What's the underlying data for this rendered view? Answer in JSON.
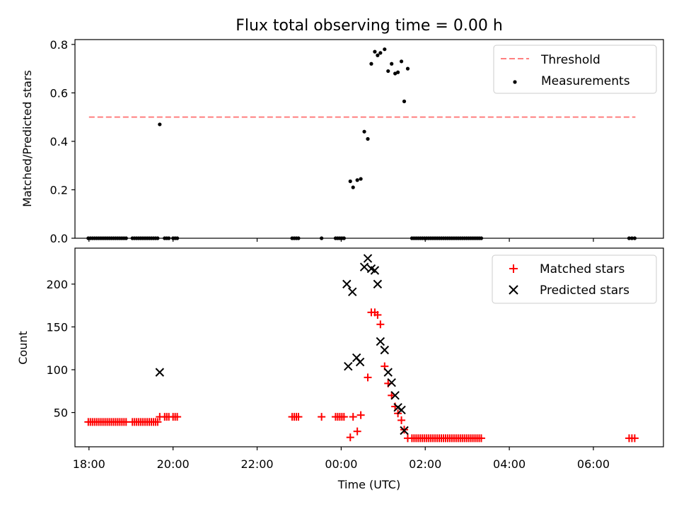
{
  "chart_data": [
    {
      "type": "scatter",
      "title": "Flux total observing time = 0.00 h",
      "xlabel": "",
      "ylabel": "Matched/Predicted stars",
      "xlim": [
        "17:40",
        "07:40"
      ],
      "ylim": [
        0,
        0.82
      ],
      "yticks": [
        0.0,
        0.2,
        0.4,
        0.6,
        0.8
      ],
      "ytick_labels": [
        "0.0",
        "0.2",
        "0.4",
        "0.6",
        "0.8"
      ],
      "grid": false,
      "legend": "upper right",
      "threshold": {
        "name": "Threshold",
        "value": 0.5,
        "x_range": [
          "18:00",
          "07:00"
        ],
        "color": "#ff7f7f",
        "style": "dashed"
      },
      "series": [
        {
          "name": "Measurements",
          "color": "#000000",
          "marker": "dot",
          "points": [
            [
              "17:59",
              0
            ],
            [
              "18:02",
              0
            ],
            [
              "18:05",
              0
            ],
            [
              "18:08",
              0
            ],
            [
              "18:11",
              0
            ],
            [
              "18:14",
              0
            ],
            [
              "18:17",
              0
            ],
            [
              "18:20",
              0
            ],
            [
              "18:23",
              0
            ],
            [
              "18:26",
              0
            ],
            [
              "18:29",
              0
            ],
            [
              "18:32",
              0
            ],
            [
              "18:35",
              0
            ],
            [
              "18:38",
              0
            ],
            [
              "18:41",
              0
            ],
            [
              "18:44",
              0
            ],
            [
              "18:47",
              0
            ],
            [
              "18:50",
              0
            ],
            [
              "18:53",
              0
            ],
            [
              "19:02",
              0
            ],
            [
              "19:05",
              0
            ],
            [
              "19:08",
              0
            ],
            [
              "19:11",
              0
            ],
            [
              "19:14",
              0
            ],
            [
              "19:17",
              0
            ],
            [
              "19:20",
              0
            ],
            [
              "19:23",
              0
            ],
            [
              "19:26",
              0
            ],
            [
              "19:29",
              0
            ],
            [
              "19:32",
              0
            ],
            [
              "19:35",
              0
            ],
            [
              "19:38",
              0
            ],
            [
              "19:41",
              0.47
            ],
            [
              "19:48",
              0
            ],
            [
              "19:51",
              0
            ],
            [
              "19:54",
              0
            ],
            [
              "20:00",
              0
            ],
            [
              "20:03",
              0
            ],
            [
              "20:06",
              0
            ],
            [
              "22:50",
              0
            ],
            [
              "22:53",
              0
            ],
            [
              "22:56",
              0
            ],
            [
              "22:59",
              0
            ],
            [
              "23:32",
              0
            ],
            [
              "23:52",
              0
            ],
            [
              "23:55",
              0
            ],
            [
              "23:58",
              0
            ],
            [
              "00:01",
              0
            ],
            [
              "00:04",
              0
            ],
            [
              "00:13",
              0.235
            ],
            [
              "00:17",
              0.21
            ],
            [
              "00:23",
              0.24
            ],
            [
              "00:28",
              0.245
            ],
            [
              "00:33",
              0.44
            ],
            [
              "00:38",
              0.41
            ],
            [
              "00:43",
              0.72
            ],
            [
              "00:48",
              0.77
            ],
            [
              "00:52",
              0.755
            ],
            [
              "00:56",
              0.765
            ],
            [
              "01:02",
              0.78
            ],
            [
              "01:07",
              0.69
            ],
            [
              "01:12",
              0.72
            ],
            [
              "01:17",
              0.68
            ],
            [
              "01:21",
              0.685
            ],
            [
              "01:26",
              0.73
            ],
            [
              "01:30",
              0.565
            ],
            [
              "01:35",
              0.7
            ],
            [
              "01:41",
              0
            ],
            [
              "01:44",
              0
            ],
            [
              "01:47",
              0
            ],
            [
              "01:50",
              0
            ],
            [
              "01:53",
              0
            ],
            [
              "01:56",
              0
            ],
            [
              "01:59",
              0
            ],
            [
              "02:02",
              0
            ],
            [
              "02:05",
              0
            ],
            [
              "02:08",
              0
            ],
            [
              "02:11",
              0
            ],
            [
              "02:14",
              0
            ],
            [
              "02:17",
              0
            ],
            [
              "02:20",
              0
            ],
            [
              "02:23",
              0
            ],
            [
              "02:26",
              0
            ],
            [
              "02:29",
              0
            ],
            [
              "02:32",
              0
            ],
            [
              "02:35",
              0
            ],
            [
              "02:38",
              0
            ],
            [
              "02:41",
              0
            ],
            [
              "02:44",
              0
            ],
            [
              "02:47",
              0
            ],
            [
              "02:50",
              0
            ],
            [
              "02:53",
              0
            ],
            [
              "02:56",
              0
            ],
            [
              "02:59",
              0
            ],
            [
              "03:02",
              0
            ],
            [
              "03:05",
              0
            ],
            [
              "03:08",
              0
            ],
            [
              "03:11",
              0
            ],
            [
              "03:14",
              0
            ],
            [
              "03:17",
              0
            ],
            [
              "03:20",
              0
            ],
            [
              "06:51",
              0
            ],
            [
              "06:55",
              0
            ],
            [
              "06:59",
              0
            ]
          ]
        }
      ]
    },
    {
      "type": "scatter",
      "title": "",
      "xlabel": "Time (UTC)",
      "ylabel": "Count",
      "xlim": [
        "17:40",
        "07:40"
      ],
      "xticks": [
        "18:00",
        "20:00",
        "22:00",
        "00:00",
        "02:00",
        "04:00",
        "06:00"
      ],
      "ylim": [
        10,
        242
      ],
      "yticks": [
        50,
        100,
        150,
        200
      ],
      "ytick_labels": [
        "50",
        "100",
        "150",
        "200"
      ],
      "grid": false,
      "legend": "upper right",
      "series": [
        {
          "name": "Matched stars",
          "color": "#ff0000",
          "marker": "plus",
          "points": [
            [
              "17:59",
              39
            ],
            [
              "18:02",
              39
            ],
            [
              "18:05",
              39
            ],
            [
              "18:08",
              39
            ],
            [
              "18:11",
              39
            ],
            [
              "18:14",
              39
            ],
            [
              "18:17",
              39
            ],
            [
              "18:20",
              39
            ],
            [
              "18:23",
              39
            ],
            [
              "18:26",
              39
            ],
            [
              "18:29",
              39
            ],
            [
              "18:32",
              39
            ],
            [
              "18:35",
              39
            ],
            [
              "18:38",
              39
            ],
            [
              "18:41",
              39
            ],
            [
              "18:44",
              39
            ],
            [
              "18:47",
              39
            ],
            [
              "18:50",
              39
            ],
            [
              "18:53",
              39
            ],
            [
              "19:02",
              39
            ],
            [
              "19:05",
              39
            ],
            [
              "19:08",
              39
            ],
            [
              "19:11",
              39
            ],
            [
              "19:14",
              39
            ],
            [
              "19:17",
              39
            ],
            [
              "19:20",
              39
            ],
            [
              "19:23",
              39
            ],
            [
              "19:26",
              39
            ],
            [
              "19:29",
              39
            ],
            [
              "19:32",
              39
            ],
            [
              "19:35",
              39
            ],
            [
              "19:38",
              39
            ],
            [
              "19:41",
              45
            ],
            [
              "19:48",
              45
            ],
            [
              "19:51",
              45
            ],
            [
              "19:54",
              45
            ],
            [
              "20:00",
              45
            ],
            [
              "20:03",
              45
            ],
            [
              "20:06",
              45
            ],
            [
              "22:50",
              45
            ],
            [
              "22:53",
              45
            ],
            [
              "22:56",
              45
            ],
            [
              "22:59",
              45
            ],
            [
              "23:32",
              45
            ],
            [
              "23:52",
              45
            ],
            [
              "23:55",
              45
            ],
            [
              "23:58",
              45
            ],
            [
              "00:01",
              45
            ],
            [
              "00:04",
              45
            ],
            [
              "00:13",
              21
            ],
            [
              "00:17",
              45
            ],
            [
              "00:23",
              28
            ],
            [
              "00:28",
              47
            ],
            [
              "00:38",
              91
            ],
            [
              "00:43",
              167
            ],
            [
              "00:48",
              167
            ],
            [
              "00:52",
              164
            ],
            [
              "00:56",
              153
            ],
            [
              "01:02",
              104
            ],
            [
              "01:07",
              84
            ],
            [
              "01:12",
              70
            ],
            [
              "01:17",
              57
            ],
            [
              "01:21",
              49
            ],
            [
              "01:26",
              41
            ],
            [
              "01:30",
              30
            ],
            [
              "01:35",
              20
            ],
            [
              "01:41",
              20
            ],
            [
              "01:44",
              20
            ],
            [
              "01:47",
              20
            ],
            [
              "01:50",
              20
            ],
            [
              "01:53",
              20
            ],
            [
              "01:56",
              20
            ],
            [
              "01:59",
              20
            ],
            [
              "02:02",
              20
            ],
            [
              "02:05",
              20
            ],
            [
              "02:08",
              20
            ],
            [
              "02:11",
              20
            ],
            [
              "02:14",
              20
            ],
            [
              "02:17",
              20
            ],
            [
              "02:20",
              20
            ],
            [
              "02:23",
              20
            ],
            [
              "02:26",
              20
            ],
            [
              "02:29",
              20
            ],
            [
              "02:32",
              20
            ],
            [
              "02:35",
              20
            ],
            [
              "02:38",
              20
            ],
            [
              "02:41",
              20
            ],
            [
              "02:44",
              20
            ],
            [
              "02:47",
              20
            ],
            [
              "02:50",
              20
            ],
            [
              "02:53",
              20
            ],
            [
              "02:56",
              20
            ],
            [
              "02:59",
              20
            ],
            [
              "03:02",
              20
            ],
            [
              "03:05",
              20
            ],
            [
              "03:08",
              20
            ],
            [
              "03:11",
              20
            ],
            [
              "03:14",
              20
            ],
            [
              "03:17",
              20
            ],
            [
              "03:20",
              20
            ],
            [
              "06:51",
              20
            ],
            [
              "06:55",
              20
            ],
            [
              "06:59",
              20
            ]
          ]
        },
        {
          "name": "Predicted stars",
          "color": "#000000",
          "marker": "x",
          "points": [
            [
              "19:41",
              97
            ],
            [
              "00:08",
              200
            ],
            [
              "00:10",
              104
            ],
            [
              "00:16",
              191
            ],
            [
              "00:22",
              114
            ],
            [
              "00:27",
              109
            ],
            [
              "00:33",
              220
            ],
            [
              "00:38",
              230
            ],
            [
              "00:43",
              218
            ],
            [
              "00:48",
              216
            ],
            [
              "00:52",
              200
            ],
            [
              "00:56",
              133
            ],
            [
              "01:02",
              123
            ],
            [
              "01:07",
              97
            ],
            [
              "01:12",
              85
            ],
            [
              "01:17",
              70
            ],
            [
              "01:21",
              56
            ],
            [
              "01:26",
              53
            ],
            [
              "01:30",
              29
            ]
          ]
        }
      ]
    }
  ]
}
